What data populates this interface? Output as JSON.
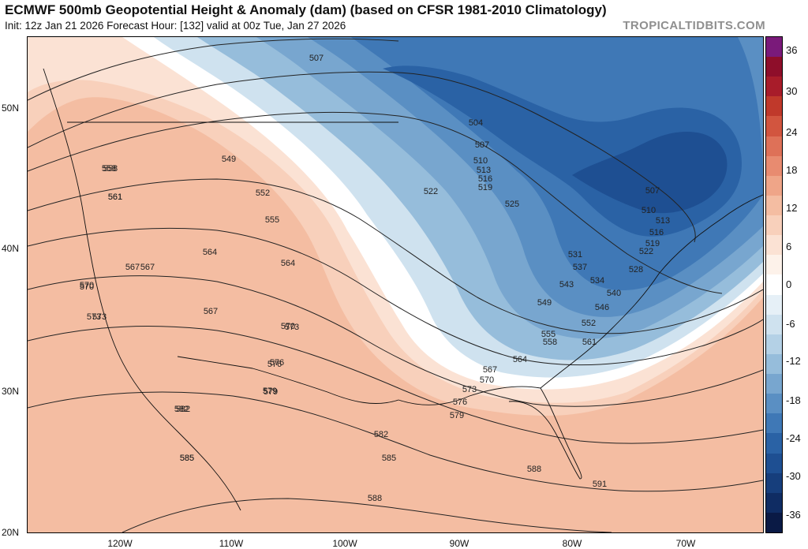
{
  "header": {
    "title": "ECMWF 500mb Geopotential Height & Anomaly (dam) (based on CFSR 1981-2010 Climatology)",
    "subtitle": "Init: 12z Jan 21 2026   Forecast Hour: [132]   valid at 00z Tue, Jan 27 2026",
    "credit": "TROPICALTIDBITS.COM"
  },
  "axes": {
    "lat_labels": [
      "50N",
      "40N",
      "30N",
      "20N"
    ],
    "lon_labels": [
      "120W",
      "110W",
      "100W",
      "90W",
      "80W",
      "70W"
    ]
  },
  "colorbar": {
    "labels": [
      "36",
      "30",
      "24",
      "18",
      "12",
      "6",
      "0",
      "-6",
      "-12",
      "-18",
      "-24",
      "-30",
      "-36"
    ],
    "colors": {
      "36": "#7a1a7a",
      "33": "#8e0e2a",
      "30": "#a81c2a",
      "27": "#c0392b",
      "24": "#d2553f",
      "21": "#de7158",
      "18": "#e88b70",
      "15": "#efa588",
      "12": "#f4bda2",
      "9": "#f8d0bb",
      "6": "#fbe2d4",
      "3": "#fdf2ea",
      "0": "#ffffff",
      "-3": "#e6f0f7",
      "-6": "#cfe2ef",
      "-9": "#b4d1e6",
      "-12": "#96bddb",
      "-15": "#78a6cf",
      "-18": "#5a8fc3",
      "-21": "#3f78b6",
      "-24": "#2a62a5",
      "-27": "#1e4f92",
      "-30": "#163e7c",
      "-33": "#0f2c63",
      "-36": "#0a1a45"
    }
  },
  "contour_labels": [
    "507",
    "504",
    "507",
    "510",
    "513",
    "516",
    "519",
    "522",
    "525",
    "507",
    "510",
    "513",
    "516",
    "519",
    "522",
    "528",
    "531",
    "534",
    "537",
    "540",
    "543",
    "546",
    "549",
    "552",
    "555",
    "558",
    "561",
    "564",
    "567",
    "570",
    "573",
    "576",
    "579",
    "582",
    "585",
    "588",
    "591",
    "549",
    "552",
    "555",
    "558",
    "561",
    "564",
    "567",
    "570",
    "573",
    "576",
    "579",
    "582",
    "585",
    "588",
    "558",
    "561",
    "567",
    "570",
    "573",
    "564",
    "567",
    "570",
    "573",
    "576",
    "579",
    "582",
    "585"
  ]
}
